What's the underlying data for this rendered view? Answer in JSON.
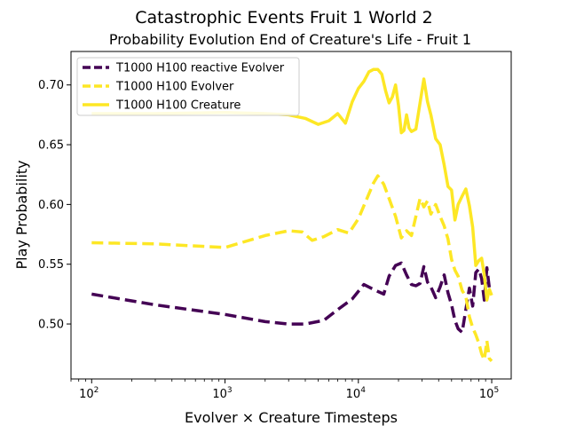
{
  "chart_data": {
    "type": "line",
    "title": "Catastrophic Events Fruit 1 World 2",
    "subtitle": "Probability Evolution End of Creature's Life - Fruit 1",
    "xlabel": "Evolver × Creature Timesteps",
    "ylabel": "Play Probability",
    "xscale": "log",
    "xlim": [
      70,
      140000
    ],
    "ylim": [
      0.454,
      0.728
    ],
    "xticks": [
      {
        "value": 100,
        "base": "10",
        "exp": "2"
      },
      {
        "value": 1000,
        "base": "10",
        "exp": "3"
      },
      {
        "value": 10000,
        "base": "10",
        "exp": "4"
      },
      {
        "value": 100000,
        "base": "10",
        "exp": "5"
      }
    ],
    "yticks": [
      "0.50",
      "0.55",
      "0.60",
      "0.65",
      "0.70"
    ],
    "legend_position": "upper-left",
    "grid": false,
    "series": [
      {
        "name": "T1000 H100 reactive Evolver",
        "color": "#440154",
        "style": "dashed",
        "x": [
          100,
          300,
          1000,
          2000,
          3000,
          4000,
          5500,
          7000,
          9000,
          11000,
          13500,
          15500,
          17000,
          19000,
          21000,
          23000,
          25000,
          27000,
          29000,
          31000,
          33000,
          35000,
          38000,
          41000,
          44000,
          47000,
          50000,
          53000,
          56000,
          60000,
          64000,
          68000,
          72000,
          76000,
          80000,
          84000,
          88000,
          92000,
          96000,
          100000
        ],
        "y": [
          0.525,
          0.516,
          0.508,
          0.502,
          0.5,
          0.5,
          0.503,
          0.512,
          0.521,
          0.533,
          0.528,
          0.525,
          0.54,
          0.549,
          0.551,
          0.541,
          0.533,
          0.532,
          0.534,
          0.548,
          0.535,
          0.531,
          0.522,
          0.531,
          0.541,
          0.526,
          0.516,
          0.503,
          0.496,
          0.493,
          0.512,
          0.53,
          0.515,
          0.543,
          0.546,
          0.538,
          0.52,
          0.547,
          0.53,
          0.529
        ]
      },
      {
        "name": "T1000 H100 Evolver",
        "color": "#fde725",
        "style": "dashed",
        "x": [
          100,
          300,
          1000,
          2000,
          3000,
          3800,
          4500,
          5500,
          7000,
          8500,
          10000,
          11500,
          13000,
          14000,
          15500,
          17000,
          19000,
          21000,
          23000,
          25000,
          27000,
          29000,
          31000,
          33000,
          35000,
          38000,
          41000,
          44000,
          47000,
          50000,
          53000,
          56000,
          60000,
          64000,
          68000,
          72000,
          76000,
          80000,
          84000,
          88000,
          92000,
          96000,
          100000
        ],
        "y": [
          0.568,
          0.567,
          0.564,
          0.574,
          0.578,
          0.577,
          0.57,
          0.573,
          0.579,
          0.576,
          0.588,
          0.604,
          0.618,
          0.624,
          0.617,
          0.605,
          0.59,
          0.572,
          0.578,
          0.574,
          0.59,
          0.605,
          0.598,
          0.603,
          0.592,
          0.6,
          0.59,
          0.582,
          0.571,
          0.554,
          0.545,
          0.54,
          0.528,
          0.523,
          0.506,
          0.497,
          0.491,
          0.484,
          0.475,
          0.47,
          0.486,
          0.471,
          0.469
        ]
      },
      {
        "name": "T1000 H100 Creature",
        "color": "#fde725",
        "style": "solid",
        "x": [
          100,
          300,
          1000,
          2000,
          3000,
          4000,
          5000,
          6000,
          7000,
          8000,
          9000,
          10000,
          11000,
          12000,
          13000,
          14000,
          15000,
          16000,
          17000,
          18000,
          19000,
          20000,
          21000,
          22000,
          23000,
          24000,
          25000,
          27000,
          29000,
          31000,
          33000,
          35000,
          38000,
          41000,
          44000,
          47000,
          50000,
          53000,
          56000,
          60000,
          64000,
          68000,
          72000,
          76000,
          80000,
          84000,
          88000,
          92000,
          96000,
          100000
        ],
        "y": [
          0.676,
          0.676,
          0.677,
          0.676,
          0.675,
          0.672,
          0.667,
          0.67,
          0.676,
          0.668,
          0.686,
          0.697,
          0.703,
          0.711,
          0.713,
          0.713,
          0.709,
          0.695,
          0.685,
          0.69,
          0.7,
          0.683,
          0.66,
          0.662,
          0.675,
          0.664,
          0.661,
          0.663,
          0.685,
          0.705,
          0.686,
          0.675,
          0.655,
          0.65,
          0.633,
          0.615,
          0.612,
          0.587,
          0.6,
          0.607,
          0.613,
          0.599,
          0.581,
          0.549,
          0.553,
          0.555,
          0.541,
          0.52,
          0.529,
          0.524
        ]
      }
    ]
  }
}
